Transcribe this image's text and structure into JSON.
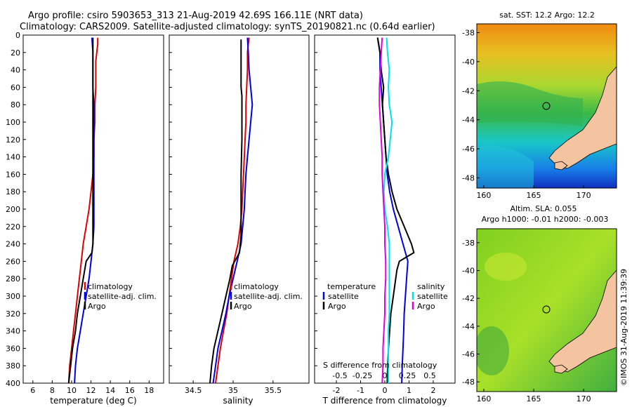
{
  "title": {
    "line1": "Argo profile: csiro 5903653_313 21-Aug-2019 42.69S 166.11E (NRT data)",
    "line2": "Climatology: CARS2009. Satellite-adjusted climatology: synTS_20190821.nc (0.64d earlier)"
  },
  "colors": {
    "red": "#e00000",
    "blue": "#0000e0",
    "black": "#000000",
    "cyan": "#00e0f0",
    "magenta": "#e000e0"
  },
  "depth_ticks": [
    0,
    20,
    40,
    60,
    80,
    100,
    120,
    140,
    160,
    180,
    200,
    220,
    240,
    260,
    280,
    300,
    320,
    340,
    360,
    380,
    400
  ],
  "chart_data": [
    {
      "type": "line",
      "panel": "temperature",
      "xlabel": "temperature (deg C)",
      "ylabel": "depth",
      "xlim": [
        5,
        19.5
      ],
      "ylim": [
        400,
        0
      ],
      "x_ticks": [
        6,
        8,
        10,
        12,
        14,
        16,
        18
      ],
      "legend": [
        "climatology",
        "satellite-adj. clim.",
        "Argo"
      ],
      "series": [
        {
          "name": "climatology",
          "color": "red",
          "depth": [
            3,
            10,
            20,
            30,
            40,
            60,
            80,
            100,
            120,
            140,
            160,
            180,
            200,
            220,
            240,
            260,
            280,
            300,
            320,
            340,
            360,
            380,
            400
          ],
          "values": [
            12.7,
            12.7,
            12.6,
            12.5,
            12.5,
            12.5,
            12.4,
            12.4,
            12.3,
            12.3,
            12.2,
            12.0,
            11.8,
            11.5,
            11.2,
            11.0,
            10.8,
            10.6,
            10.4,
            10.2,
            10.0,
            9.8,
            9.7
          ]
        },
        {
          "name": "satellite-adj. clim.",
          "color": "blue",
          "depth": [
            3,
            20,
            40,
            60,
            80,
            100,
            120,
            140,
            160,
            180,
            200,
            220,
            240,
            260,
            280,
            300,
            320,
            340,
            360,
            380,
            400
          ],
          "values": [
            12.1,
            12.2,
            12.2,
            12.2,
            12.3,
            12.3,
            12.3,
            12.3,
            12.3,
            12.3,
            12.3,
            12.3,
            12.2,
            12.0,
            11.8,
            11.5,
            11.2,
            10.9,
            10.6,
            10.4,
            10.3
          ]
        },
        {
          "name": "Argo",
          "color": "black",
          "depth": [
            3,
            20,
            40,
            60,
            80,
            100,
            120,
            140,
            160,
            180,
            200,
            220,
            240,
            250,
            260,
            280,
            300,
            320,
            340,
            360,
            380,
            400
          ],
          "values": [
            12.2,
            12.2,
            12.2,
            12.2,
            12.2,
            12.2,
            12.2,
            12.2,
            12.2,
            12.2,
            12.2,
            12.2,
            12.2,
            12.1,
            11.5,
            11.2,
            10.9,
            10.6,
            10.4,
            10.1,
            9.9,
            9.7
          ]
        }
      ]
    },
    {
      "type": "line",
      "panel": "salinity",
      "xlabel": "salinity",
      "ylabel": "depth",
      "xlim": [
        34.2,
        35.95
      ],
      "ylim": [
        400,
        0
      ],
      "x_ticks": [
        34.5,
        35,
        35.5
      ],
      "x_tick_labels": [
        "34.5",
        "35",
        "35.5"
      ],
      "legend": [
        "climatology",
        "satellite-adj. clim.",
        "Argo"
      ],
      "series": [
        {
          "name": "climatology",
          "color": "red",
          "depth": [
            3,
            10,
            20,
            40,
            60,
            80,
            100,
            120,
            140,
            160,
            180,
            200,
            220,
            240,
            260,
            280,
            300,
            320,
            340,
            360,
            380,
            400
          ],
          "values": [
            35.2,
            35.19,
            35.18,
            35.18,
            35.17,
            35.16,
            35.16,
            35.15,
            35.14,
            35.13,
            35.12,
            35.11,
            35.09,
            35.06,
            35.01,
            34.98,
            34.95,
            34.92,
            34.88,
            34.84,
            34.81,
            34.78
          ]
        },
        {
          "name": "satellite-adj. clim.",
          "color": "blue",
          "depth": [
            3,
            20,
            40,
            60,
            80,
            100,
            120,
            140,
            160,
            180,
            200,
            220,
            240,
            260,
            280,
            300,
            320,
            340,
            360,
            380,
            400
          ],
          "values": [
            35.18,
            35.19,
            35.2,
            35.22,
            35.24,
            35.22,
            35.2,
            35.18,
            35.16,
            35.15,
            35.14,
            35.12,
            35.1,
            35.05,
            35.0,
            34.95,
            34.91,
            34.86,
            34.81,
            34.78,
            34.75
          ]
        },
        {
          "name": "Argo",
          "color": "black",
          "depth": [
            5,
            60,
            70,
            100,
            120,
            160,
            200,
            230,
            250,
            265,
            280,
            300,
            320,
            340,
            360,
            380,
            400
          ],
          "values": [
            35.1,
            35.1,
            35.11,
            35.11,
            35.11,
            35.1,
            35.1,
            35.1,
            35.08,
            34.99,
            34.96,
            34.91,
            34.86,
            34.81,
            34.76,
            34.73,
            34.71
          ]
        }
      ]
    },
    {
      "type": "line",
      "panel": "difference",
      "xlabel": "T difference from climatology",
      "x2label": "S difference from climatology",
      "ylabel": "depth",
      "xlim": [
        -2.9,
        2.9
      ],
      "ylim": [
        400,
        0
      ],
      "x_ticks": [
        -2,
        -1,
        0,
        1,
        2
      ],
      "s_ticks": [
        -0.5,
        -0.25,
        0,
        0.25,
        0.5
      ],
      "s_tick_labels": [
        "-0.5",
        "-0.25",
        "0",
        "0.25",
        "0.5"
      ],
      "legend_temperature": {
        "title": "temperature",
        "items": [
          "satellite",
          "Argo"
        ]
      },
      "legend_salinity": {
        "title": "salinity",
        "items": [
          "satellite",
          "Argo"
        ]
      },
      "series": [
        {
          "name": "temperature satellite",
          "color": "blue",
          "depth": [
            3,
            20,
            40,
            60,
            80,
            100,
            120,
            140,
            160,
            180,
            200,
            220,
            240,
            260,
            280,
            300,
            320,
            340,
            360,
            380,
            400
          ],
          "values": [
            -0.3,
            -0.2,
            -0.2,
            -0.15,
            -0.1,
            -0.05,
            0.0,
            0.05,
            0.1,
            0.2,
            0.35,
            0.55,
            0.75,
            0.95,
            0.9,
            0.85,
            0.8,
            0.78,
            0.75,
            0.72,
            0.7
          ]
        },
        {
          "name": "temperature Argo",
          "color": "black",
          "depth": [
            3,
            20,
            40,
            60,
            80,
            100,
            120,
            140,
            160,
            180,
            200,
            220,
            240,
            250,
            260,
            270,
            280,
            300,
            320,
            340,
            360,
            380,
            400
          ],
          "values": [
            -0.3,
            -0.2,
            -0.15,
            -0.05,
            -0.1,
            -0.05,
            0.0,
            0.05,
            0.15,
            0.3,
            0.5,
            0.8,
            1.1,
            1.2,
            0.6,
            0.5,
            0.45,
            0.35,
            0.25,
            0.2,
            0.15,
            0.12,
            0.1
          ]
        },
        {
          "name": "salinity satellite",
          "color": "cyan",
          "depth": [
            3,
            20,
            40,
            60,
            80,
            100,
            120,
            140,
            160,
            180,
            200,
            220,
            240,
            260,
            280,
            300,
            320,
            340,
            360,
            380,
            400
          ],
          "values": [
            0.02,
            0.03,
            0.05,
            0.04,
            0.05,
            0.08,
            0.06,
            0.04,
            0.0,
            -0.01,
            0.0,
            0.03,
            0.05,
            0.05,
            0.05,
            0.05,
            0.05,
            0.04,
            0.04,
            0.04,
            0.04
          ]
        },
        {
          "name": "salinity Argo",
          "color": "magenta",
          "depth": [
            3,
            20,
            40,
            60,
            80,
            100,
            120,
            140,
            160,
            180,
            200,
            220,
            240,
            260,
            280,
            300,
            320,
            340,
            360,
            380,
            400
          ],
          "values": [
            -0.03,
            -0.04,
            -0.05,
            -0.06,
            -0.06,
            -0.05,
            -0.04,
            -0.03,
            -0.03,
            -0.02,
            -0.01,
            0.0,
            0.0,
            0.01,
            0.01,
            0.0,
            0.0,
            -0.01,
            -0.02,
            -0.02,
            -0.03
          ]
        }
      ]
    },
    {
      "type": "heatmap",
      "panel": "sst_map",
      "title": "sat. SST: 12.2 Argo: 12.2",
      "xlim": [
        159.3,
        173.3
      ],
      "ylim": [
        -48.7,
        -37.4
      ],
      "x_ticks": [
        160,
        165,
        170
      ],
      "y_ticks": [
        -38,
        -40,
        -42,
        -44,
        -46,
        -48
      ],
      "marker": {
        "lon": 166.11,
        "lat": -42.69
      }
    },
    {
      "type": "heatmap",
      "panel": "sla_map",
      "title1": "Altim. SLA: 0.055",
      "title2": "Argo h1000: -0.01 h2000: -0.003",
      "xlim": [
        159.3,
        173.3
      ],
      "ylim": [
        -48.7,
        -37.0
      ],
      "x_ticks": [
        160,
        165,
        170
      ],
      "y_ticks": [
        -38,
        -40,
        -42,
        -44,
        -46,
        -48
      ],
      "marker": {
        "lon": 166.11,
        "lat": -42.69
      }
    }
  ],
  "credit": "©IMOS 31-Aug-2019 11:39:39"
}
